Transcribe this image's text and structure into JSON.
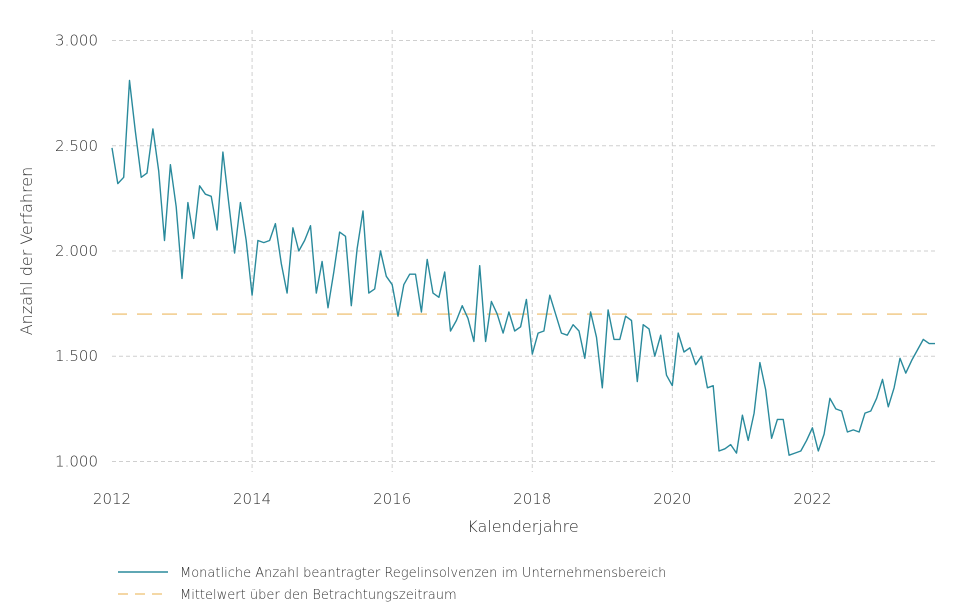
{
  "chart_data": {
    "type": "line",
    "xlabel": "Kalenderjahre",
    "ylabel": "Anzahl der Verfahren",
    "x_start": "2012-01",
    "x_end": "2023-10",
    "xlim": [
      2012,
      2023.75
    ],
    "ylim": [
      950,
      3050
    ],
    "yticks": [
      1000,
      1500,
      2000,
      2500,
      3000
    ],
    "ytick_labels": [
      "1.000",
      "1.500",
      "2.000",
      "2.500",
      "3.000"
    ],
    "xticks": [
      2012,
      2014,
      2016,
      2018,
      2020,
      2022
    ],
    "xtick_labels": [
      "2012",
      "2014",
      "2016",
      "2018",
      "2020",
      "2022"
    ],
    "grid": true,
    "legend_position": "bottom-left",
    "series": [
      {
        "name": "Monatliche Anzahl beantragter Regelinsolvenzen im Unternehmensbereich",
        "color": "#2a8a9c",
        "style": "solid",
        "values": [
          2490,
          2320,
          2350,
          2810,
          2570,
          2350,
          2370,
          2580,
          2380,
          2050,
          2410,
          2210,
          1870,
          2230,
          2060,
          2310,
          2270,
          2260,
          2100,
          2470,
          2230,
          1990,
          2230,
          2050,
          1790,
          2050,
          2040,
          2050,
          2130,
          1940,
          1800,
          2110,
          2000,
          2050,
          2120,
          1800,
          1950,
          1730,
          1900,
          2090,
          2070,
          1740,
          2010,
          2190,
          1800,
          1820,
          2000,
          1880,
          1840,
          1690,
          1840,
          1890,
          1890,
          1710,
          1960,
          1800,
          1780,
          1900,
          1620,
          1670,
          1740,
          1680,
          1570,
          1930,
          1570,
          1760,
          1700,
          1610,
          1710,
          1620,
          1640,
          1770,
          1510,
          1610,
          1620,
          1790,
          1700,
          1610,
          1600,
          1650,
          1620,
          1490,
          1710,
          1590,
          1350,
          1720,
          1580,
          1580,
          1690,
          1670,
          1380,
          1650,
          1630,
          1500,
          1600,
          1410,
          1360,
          1610,
          1520,
          1540,
          1460,
          1500,
          1350,
          1360,
          1050,
          1060,
          1080,
          1040,
          1220,
          1100,
          1230,
          1470,
          1340,
          1110,
          1200,
          1200,
          1030,
          1040,
          1050,
          1100,
          1160,
          1050,
          1130,
          1300,
          1250,
          1240,
          1140,
          1150,
          1140,
          1230,
          1240,
          1300,
          1390,
          1260,
          1350,
          1490,
          1420,
          1480,
          1530,
          1580,
          1560,
          1560
        ]
      },
      {
        "name": "Mittelwert über den Betrachtungszeitraum",
        "color": "#f3d29a",
        "style": "dashed",
        "values": [
          1700,
          1700
        ]
      }
    ]
  }
}
